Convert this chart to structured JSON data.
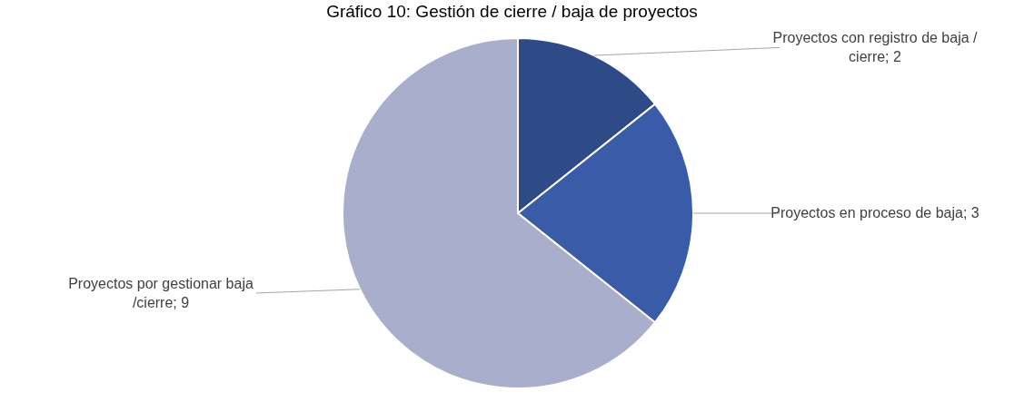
{
  "chart_data": {
    "type": "pie",
    "title": "Gráfico 10: Gestión de cierre / baja de proyectos",
    "categories": [
      "Proyectos con registro de baja / cierre; 2",
      "Proyectos en proceso de baja; 3",
      "Proyectos por gestionar baja /cierre; 9"
    ],
    "values": [
      2,
      3,
      9
    ],
    "colors": [
      "#2e4a87",
      "#3a5ba8",
      "#a8aecb"
    ]
  }
}
